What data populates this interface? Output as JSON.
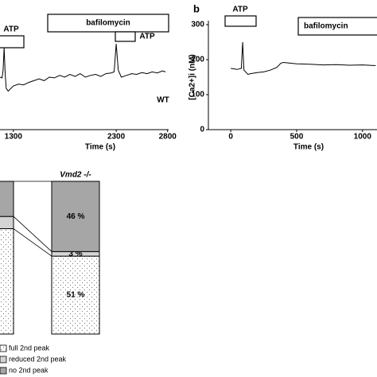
{
  "chart_data": [
    {
      "type": "line",
      "x_label": "Time (s)",
      "color": "#000000",
      "x": [
        1170,
        1190,
        1200,
        1210,
        1220,
        1230,
        1250,
        1300,
        1350,
        1400,
        1450,
        1500,
        1550,
        1600,
        1650,
        1700,
        1750,
        1800,
        1850,
        1900,
        1950,
        2000,
        2050,
        2100,
        2150,
        2200,
        2250,
        2280,
        2300,
        2320,
        2350,
        2400,
        2450,
        2500,
        2550,
        2600,
        2650,
        2700,
        2750,
        2780
      ],
      "values": [
        150,
        148,
        170,
        235,
        160,
        118,
        110,
        125,
        130,
        128,
        135,
        140,
        145,
        140,
        150,
        148,
        155,
        150,
        158,
        152,
        160,
        150,
        155,
        158,
        152,
        160,
        162,
        165,
        245,
        170,
        150,
        155,
        160,
        158,
        163,
        160,
        165,
        162,
        168,
        165
      ],
      "xlim": [
        1170,
        2810
      ],
      "xticks": [
        1300,
        2300,
        2800
      ],
      "ylim": [
        0,
        300
      ],
      "annotations": [
        "ATP",
        "bafilomycin",
        "ATP",
        "WT"
      ]
    },
    {
      "type": "line",
      "panel_label": "b",
      "x_label": "Time (s)",
      "y_label": "[Ca2+]i (nM)",
      "color": "#000000",
      "x": [
        0,
        50,
        80,
        90,
        100,
        130,
        150,
        200,
        250,
        300,
        350,
        380,
        400,
        450,
        500,
        600,
        700,
        800,
        900,
        1000,
        1100
      ],
      "values": [
        175,
        172,
        175,
        250,
        170,
        158,
        160,
        163,
        165,
        170,
        178,
        190,
        192,
        190,
        188,
        187,
        185,
        186,
        184,
        185,
        183
      ],
      "xlim": [
        -170,
        1110
      ],
      "xticks": [
        0,
        500,
        1000
      ],
      "ylim": [
        0,
        300
      ],
      "yticks": [
        0,
        100,
        200,
        300
      ],
      "annotations": [
        "ATP",
        "bafilomycin"
      ]
    },
    {
      "type": "bar",
      "stacked": true,
      "categories": [
        null,
        "Vmd2 -/-"
      ],
      "ylim": [
        0,
        100
      ],
      "series": [
        {
          "name": "full 2nd peak",
          "color": "#ffffff",
          "pattern": "dots",
          "values": [
            69,
            51
          ],
          "value_labels": [
            null,
            "51 %"
          ]
        },
        {
          "name": "reduced 2nd peak",
          "color": "#d4d4d4",
          "values": [
            8,
            3
          ],
          "value_labels": [
            null,
            "3 %"
          ]
        },
        {
          "name": "no 2nd peak",
          "color": "#a6a6a6",
          "values": [
            23,
            46
          ],
          "value_labels": [
            null,
            "46 %"
          ]
        }
      ]
    }
  ]
}
